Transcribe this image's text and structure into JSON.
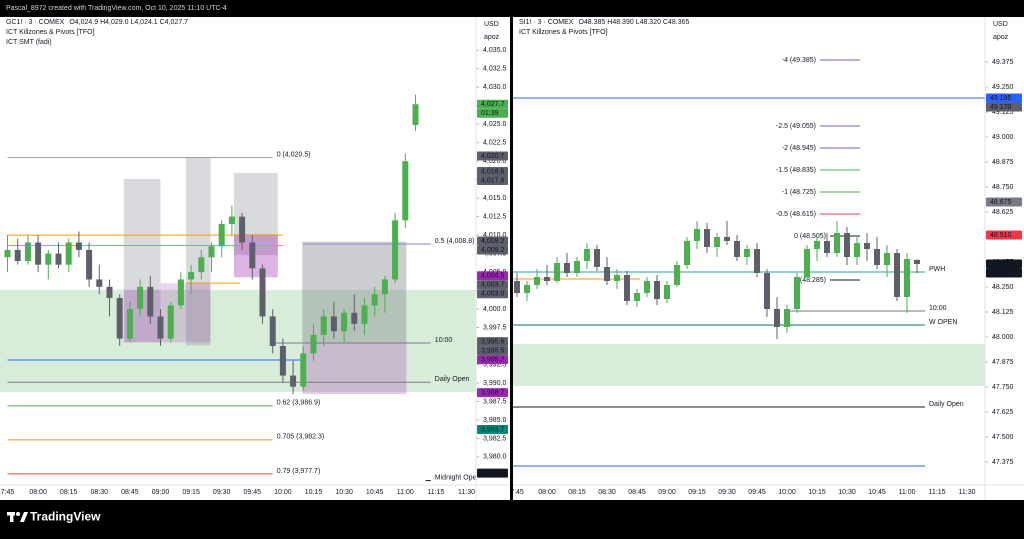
{
  "header": "Pascal_8972 created with TradingView.com, Oct 10, 2025 11:10 UTC-4",
  "brand": "TradingView",
  "chart_data": [
    {
      "type": "candlestick",
      "symbol": "GC1! · 3 · COMEX",
      "ohlc_text": "O4,024.9 H4,029.0 L4,024.1 C4,027.7",
      "indicators": [
        "ICT Killzones & Pivots [TFO]",
        "ICT SMT (fadi)"
      ],
      "currency": "USD",
      "scale_label": "apoz",
      "categories": [
        "7:45",
        null,
        null,
        "08:00",
        null,
        null,
        "08:15",
        null,
        null,
        "08:30",
        null,
        null,
        "08:45",
        null,
        null,
        "09:00",
        null,
        null,
        "09:15",
        null,
        null,
        "09:30",
        null,
        null,
        "09:45",
        null,
        null,
        "10:00",
        null,
        null,
        "10:15",
        null,
        null,
        "10:30",
        null,
        null,
        "10:45",
        null,
        null,
        "11:00",
        null,
        null,
        "11:15",
        null,
        null,
        "11:30"
      ],
      "open": [
        4007,
        4008,
        4006.5,
        4009,
        4006,
        4007.5,
        4006,
        4009,
        4008,
        4004,
        4003,
        4001.5,
        3996,
        4000,
        4003,
        3999,
        3996,
        4000.5,
        4004,
        4005,
        4007,
        4008.5,
        4011.5,
        4012.5,
        4009,
        4005.5,
        3999,
        3995,
        3991,
        3989.5,
        3994,
        3996.5,
        3999,
        3997,
        3999.5,
        3998,
        4000.5,
        4002,
        4004,
        4012,
        4024.9,
        null,
        null,
        null,
        null,
        null
      ],
      "high": [
        4010,
        4009.5,
        4010,
        4010,
        4008,
        4009,
        4009.5,
        4010.5,
        4009,
        4006,
        4004,
        4002,
        4001,
        4004,
        4004.5,
        4000,
        4001,
        4005,
        4006,
        4008,
        4009,
        4012,
        4014,
        4013,
        4010,
        4006,
        4000,
        3996,
        3993,
        3995,
        3998,
        4000,
        4001,
        4000,
        4002,
        4001.5,
        4003,
        4004.5,
        4013,
        4021,
        4029,
        null,
        null,
        null,
        null,
        null
      ],
      "low": [
        4005,
        4006,
        4006,
        4005,
        4004,
        4005.5,
        4005,
        4007,
        4003,
        4002,
        3999,
        3995,
        3995.5,
        3999,
        3998,
        3995,
        3995.5,
        4000,
        4002,
        4004,
        4005,
        4007,
        4010,
        4008,
        4004,
        3998,
        3994,
        3990,
        3988.5,
        3989,
        3993,
        3995,
        3996,
        3995.5,
        3997,
        3996.5,
        3999,
        3999.5,
        4003.5,
        4011,
        4024.1,
        null,
        null,
        null,
        null,
        null
      ],
      "close": [
        4008,
        4006.5,
        4009,
        4006,
        4007.5,
        4006,
        4009,
        4008,
        4004,
        4003,
        4001.5,
        3996,
        4000,
        4003,
        3999,
        3996,
        4000.5,
        4004,
        4005,
        4007,
        4008.5,
        4011.5,
        4012.5,
        4009,
        4005.5,
        3999,
        3995,
        3991,
        3989.5,
        3994,
        3996.5,
        3999,
        3997,
        3999.5,
        3998,
        4000.5,
        4002,
        4004,
        4012,
        4020,
        4027.7,
        null,
        null,
        null,
        null,
        null
      ],
      "up_color": "#4caf50",
      "down_color": "#5d606b",
      "ylim": [
        3976.2,
        4039.5
      ],
      "yticks": [
        {
          "value": 4035,
          "label": "4,035.0"
        },
        {
          "value": 4032.5,
          "label": "4,032.5"
        },
        {
          "value": 4030,
          "label": "4,030.0"
        },
        {
          "value": 4027.5,
          "label": "4,027.5"
        },
        {
          "value": 4025,
          "label": "4,025.0"
        },
        {
          "value": 4022.5,
          "label": "4,022.5"
        },
        {
          "value": 4020,
          "label": "4,020.0"
        },
        {
          "value": 4017.5,
          "label": "4,017.5"
        },
        {
          "value": 4015,
          "label": "4,015.0"
        },
        {
          "value": 4012.5,
          "label": "4,012.5"
        },
        {
          "value": 4010,
          "label": "4,010.0"
        },
        {
          "value": 4007.5,
          "label": "4,007.5"
        },
        {
          "value": 4005,
          "label": "4,005.0"
        },
        {
          "value": 4002.5,
          "label": "4,002.5"
        },
        {
          "value": 4000,
          "label": "4,000.0"
        },
        {
          "value": 3997.5,
          "label": "3,997.5"
        },
        {
          "value": 3995,
          "label": "3,995.0"
        },
        {
          "value": 3992.5,
          "label": "3,992.5"
        },
        {
          "value": 3990,
          "label": "3,990.0"
        },
        {
          "value": 3987.5,
          "label": "3,987.5"
        },
        {
          "value": 3985,
          "label": "3,985.0"
        },
        {
          "value": 3982.5,
          "label": "3,982.5"
        },
        {
          "value": 3980,
          "label": "3,980.0"
        }
      ],
      "zones": [
        {
          "from": 3988.8,
          "to": 4002.6,
          "start": -0.8,
          "end": 46,
          "color": "rgba(76,175,80,0.22)"
        },
        {
          "from": 4002.6,
          "to": 4017.6,
          "start": 11.4,
          "end": 15,
          "color": "rgba(120,123,134,0.28)"
        },
        {
          "from": 3995.1,
          "to": 4020.5,
          "start": 17.5,
          "end": 19.9,
          "color": "rgba(120,123,134,0.28)"
        },
        {
          "from": 4007.3,
          "to": 4018.4,
          "start": 22.2,
          "end": 26.5,
          "color": "rgba(120,123,134,0.28)"
        },
        {
          "from": 3995.5,
          "to": 4009.1,
          "start": 28.9,
          "end": 39.1,
          "color": "rgba(120,123,134,0.38)"
        },
        {
          "from": 3995.5,
          "to": 4002.6,
          "start": 11.4,
          "end": 15,
          "color": "rgba(156,39,176,0.35)"
        },
        {
          "from": 3995.5,
          "to": 4003.5,
          "start": 15,
          "end": 19.9,
          "color": "rgba(156,39,176,0.2)"
        },
        {
          "from": 4004.3,
          "to": 4010.1,
          "start": 22.2,
          "end": 26.5,
          "color": "rgba(156,39,176,0.35)"
        },
        {
          "from": 3988.5,
          "to": 3995.5,
          "start": 28.9,
          "end": 39.1,
          "color": "rgba(156,39,176,0.25)"
        }
      ],
      "levels": [
        {
          "label": "0 (4,020.5)",
          "value": 4020.5,
          "color": "#9e9e9e",
          "start": 0,
          "end": 26
        },
        {
          "label": "0.5 (4,008.8)",
          "value": 4008.8,
          "color": "#9c7fd0",
          "start": 29,
          "end": 41.5
        },
        {
          "label": "10:00",
          "value": 3995.4,
          "color": "#787b86",
          "start": 26,
          "end": 41.5
        },
        {
          "label": "Daily Open",
          "value": 3990.1,
          "color": "#787b86",
          "start": 0,
          "end": 41.5
        },
        {
          "label": "0.62 (3,986.9)",
          "value": 3986.9,
          "color": "#4caf50",
          "start": 0,
          "end": 26
        },
        {
          "label": "0.705 (3,982.3)",
          "value": 3982.3,
          "color": "#ff9800",
          "start": 0,
          "end": 26
        },
        {
          "label": "0.79 (3,977.7)",
          "value": 3977.7,
          "color": "#f44336",
          "start": 0,
          "end": 26
        },
        {
          "label": "Midnight Open",
          "value": 3976.8,
          "color": "#131722",
          "start": 41,
          "end": 41.5
        },
        {
          "value": 4010,
          "color": "#ff9800",
          "start": 0,
          "end": 27
        },
        {
          "value": 4008.6,
          "color": "#ff9800",
          "start": 0,
          "end": 27
        },
        {
          "value": 4003.5,
          "color": "#ff9800",
          "start": 17.5,
          "end": 22.8
        },
        {
          "value": 3993.1,
          "color": "#2962ff",
          "start": 0,
          "end": 29
        }
      ],
      "price_labels": [
        {
          "value": 4027.7,
          "label": "4,027.7",
          "color": "#4caf50"
        },
        {
          "value": 4020.7,
          "label": "4,020.7",
          "color": "#5d606b"
        },
        {
          "value": 4018.6,
          "label": "4,018.6",
          "color": "#5d606b"
        },
        {
          "value": 4017.8,
          "label": "4,017.8",
          "color": "#5d606b"
        },
        {
          "value": 4009.2,
          "label": "4,009.2",
          "color": "#5d606b"
        },
        {
          "value": 4009.2,
          "label": "4,009.2",
          "color": "#5d606b"
        },
        {
          "value": 4004.5,
          "label": "4,004.5",
          "color": "#9c27b0"
        },
        {
          "value": 4003.7,
          "label": "4,003.7",
          "color": "#5d606b"
        },
        {
          "value": 4003.0,
          "label": "4,003.0",
          "color": "#5d606b"
        },
        {
          "value": 3995.6,
          "label": "3,995.6",
          "color": "#5d606b"
        },
        {
          "value": 3995.5,
          "label": "3,995.5",
          "color": "#5d606b"
        },
        {
          "value": 3995.2,
          "label": "3,995.2",
          "color": "#9c27b0"
        },
        {
          "value": 3988.7,
          "label": "3,988.7",
          "color": "#9c27b0"
        },
        {
          "value": 3983.7,
          "label": "3,983.7",
          "color": "#00897b"
        },
        {
          "value": 3977.8,
          "label": "3,977.8",
          "color": "#131722"
        }
      ],
      "countdown": "01:39"
    },
    {
      "type": "candlestick",
      "symbol": "SI1! · 3 · COMEX",
      "ohlc_text": "O48.385 H48.390 L48.320 C48.365",
      "indicators": [
        "ICT Killzones & Pivots [TFO]"
      ],
      "currency": "USD",
      "scale_label": "apoz",
      "categories": [
        "7:45",
        null,
        null,
        "08:00",
        null,
        null,
        "08:15",
        null,
        null,
        "08:30",
        null,
        null,
        "08:45",
        null,
        null,
        "09:00",
        null,
        null,
        "09:15",
        null,
        null,
        "09:30",
        null,
        null,
        "09:45",
        null,
        null,
        "10:00",
        null,
        null,
        "10:15",
        null,
        null,
        "10:30",
        null,
        null,
        "10:45",
        null,
        null,
        "11:00",
        null,
        null,
        "11:15",
        null,
        null,
        "11:30"
      ],
      "open": [
        48.28,
        48.22,
        48.26,
        48.3,
        48.28,
        48.37,
        48.32,
        48.38,
        48.44,
        48.35,
        48.28,
        48.31,
        48.18,
        48.22,
        48.28,
        48.19,
        48.26,
        48.36,
        48.48,
        48.54,
        48.45,
        48.5,
        48.48,
        48.4,
        48.44,
        48.32,
        48.14,
        48.05,
        48.14,
        48.3,
        48.44,
        48.48,
        48.42,
        48.52,
        48.4,
        48.47,
        48.44,
        48.36,
        48.42,
        48.2,
        48.385,
        null,
        null,
        null,
        null,
        null
      ],
      "high": [
        48.32,
        48.28,
        48.34,
        48.36,
        48.4,
        48.42,
        48.4,
        48.47,
        48.46,
        48.4,
        48.34,
        48.33,
        48.24,
        48.3,
        48.31,
        48.28,
        48.38,
        48.5,
        48.58,
        48.57,
        48.52,
        48.58,
        48.51,
        48.46,
        48.47,
        48.34,
        48.2,
        48.16,
        48.32,
        48.46,
        48.5,
        48.52,
        48.58,
        48.55,
        48.5,
        48.52,
        48.5,
        48.46,
        48.44,
        48.42,
        48.39,
        null,
        null,
        null,
        null,
        null
      ],
      "low": [
        48.2,
        48.18,
        48.24,
        48.26,
        48.27,
        48.3,
        48.3,
        48.34,
        48.33,
        48.26,
        48.24,
        48.16,
        48.15,
        48.2,
        48.16,
        48.17,
        48.25,
        48.34,
        48.44,
        48.42,
        48.4,
        48.46,
        48.38,
        48.36,
        48.3,
        48.1,
        47.99,
        48.02,
        48.12,
        48.28,
        48.38,
        48.4,
        48.4,
        48.36,
        48.36,
        48.38,
        48.34,
        48.3,
        48.18,
        48.12,
        48.32,
        null,
        null,
        null,
        null,
        null
      ],
      "close": [
        48.22,
        48.26,
        48.3,
        48.28,
        48.37,
        48.32,
        48.38,
        48.44,
        48.35,
        48.28,
        48.31,
        48.18,
        48.22,
        48.28,
        48.19,
        48.26,
        48.36,
        48.48,
        48.54,
        48.45,
        48.5,
        48.48,
        48.4,
        48.44,
        48.32,
        48.14,
        48.05,
        48.14,
        48.3,
        48.44,
        48.48,
        48.42,
        48.52,
        48.4,
        48.47,
        48.44,
        48.36,
        48.42,
        48.2,
        48.39,
        48.365,
        null,
        null,
        null,
        null,
        null
      ],
      "up_color": "#4caf50",
      "down_color": "#5d606b",
      "ylim": [
        47.26,
        49.6
      ],
      "yticks": [
        49.375,
        {
          "value": 49.25,
          "label": "49.250"
        },
        49.125,
        {
          "value": 49,
          "label": "49.000"
        },
        48.875,
        {
          "value": 48.75,
          "label": "48.750"
        },
        48.625,
        {
          "value": 48.5,
          "label": "48.500"
        },
        48.375,
        {
          "value": 48.25,
          "label": "48.250"
        },
        48.125,
        {
          "value": 48,
          "label": "48.000"
        },
        47.875,
        {
          "value": 47.75,
          "label": "47.750"
        },
        47.625,
        {
          "value": 47.5,
          "label": "47.500"
        },
        47.375
      ],
      "zones": [
        {
          "from": 47.755,
          "to": 47.965,
          "start": -0.5,
          "end": 46.8,
          "color": "rgba(76,175,80,0.22)"
        }
      ],
      "levels": [
        {
          "label": "-4 (49.385)",
          "value": 49.385,
          "color": "#7e57c2",
          "start": 30.3,
          "end": 34.3,
          "label_at": "start"
        },
        {
          "label": "-2.5 (49.055)",
          "value": 49.055,
          "color": "#7e57c2",
          "start": 30.3,
          "end": 34.3,
          "label_at": "start"
        },
        {
          "label": "-2 (48.945)",
          "value": 48.945,
          "color": "#7e57c2",
          "start": 30.3,
          "end": 34.3,
          "label_at": "start"
        },
        {
          "label": "-1.5 (48.835)",
          "value": 48.835,
          "color": "#4caf50",
          "start": 30.3,
          "end": 34.3,
          "label_at": "start"
        },
        {
          "label": "-1 (48.725)",
          "value": 48.725,
          "color": "#4caf50",
          "start": 30.3,
          "end": 34.3,
          "label_at": "start"
        },
        {
          "label": "-0.5 (48.615)",
          "value": 48.615,
          "color": "#f23645",
          "start": 30.3,
          "end": 34.3,
          "label_at": "start"
        },
        {
          "label": "0 (48.505)",
          "value": 48.505,
          "color": "#131722",
          "start": 31.3,
          "end": 34.3,
          "label_at": "start"
        },
        {
          "label": "1 (48.285)",
          "value": 48.285,
          "color": "#131722",
          "start": 31.3,
          "end": 34.3,
          "label_at": "start"
        },
        {
          "value": 49.195,
          "color": "#2962ff",
          "start": -0.5,
          "end": 46.8
        },
        {
          "label": "PWH",
          "value": 48.325,
          "color": "#26a69a",
          "start": -0.5,
          "end": 40.8
        },
        {
          "label": "10:00",
          "value": 48.13,
          "color": "#787b86",
          "start": 27.3,
          "end": 40.8
        },
        {
          "label": "W OPEN",
          "value": 48.06,
          "color": "#00796b",
          "start": -0.5,
          "end": 40.8
        },
        {
          "label": "Daily Open",
          "value": 47.65,
          "color": "#131722",
          "start": -0.5,
          "end": 40.8
        },
        {
          "value": 47.355,
          "color": "#2962ff",
          "start": -0.5,
          "end": 40.8
        },
        {
          "value": 48.29,
          "color": "#ff9800",
          "start": -0.5,
          "end": 12.3
        }
      ],
      "price_labels": [
        {
          "value": 48.365,
          "label": "48.365",
          "color": "#131722"
        },
        {
          "value": 49.195,
          "label": "49.195",
          "color": "#2962ff"
        },
        {
          "value": 49.17,
          "label": "49.170",
          "color": "#5d606b"
        },
        {
          "value": 48.675,
          "label": "48.675",
          "color": "#787b86"
        },
        {
          "value": 48.51,
          "label": "48.510",
          "color": "#f23645"
        }
      ],
      "countdown": "01:39"
    }
  ]
}
